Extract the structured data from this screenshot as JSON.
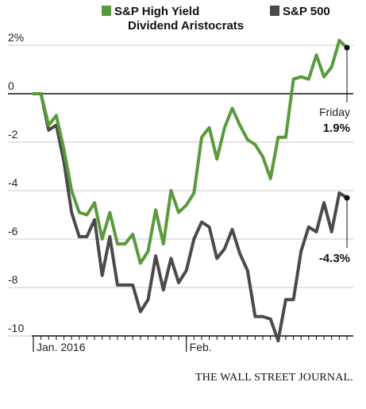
{
  "chart_data": {
    "type": "line",
    "ylim": [
      -10,
      2
    ],
    "yticks": [
      {
        "value": 2,
        "label": "2%"
      },
      {
        "value": 0,
        "label": "0"
      },
      {
        "value": -2,
        "label": "-2"
      },
      {
        "value": -4,
        "label": "-4"
      },
      {
        "value": -6,
        "label": "-6"
      },
      {
        "value": -8,
        "label": "-8"
      },
      {
        "value": -10,
        "label": "-10"
      }
    ],
    "xlabels": [
      {
        "index": 0,
        "label": "Jan. 2016"
      },
      {
        "index": 20,
        "label": "Feb."
      }
    ],
    "series": [
      {
        "name": "S&P High Yield Dividend Aristocrats",
        "color": "#5a9a3c",
        "values": [
          0,
          0,
          -1.3,
          -0.9,
          -2.3,
          -4.0,
          -4.9,
          -5.0,
          -4.5,
          -6.0,
          -4.9,
          -6.2,
          -6.2,
          -5.8,
          -7.0,
          -6.5,
          -4.8,
          -6.2,
          -4.0,
          -4.9,
          -4.6,
          -4.1,
          -1.8,
          -1.4,
          -2.7,
          -1.4,
          -0.6,
          -1.3,
          -1.9,
          -2.1,
          -2.6,
          -3.5,
          -1.8,
          -1.8,
          0.6,
          0.7,
          0.6,
          1.6,
          0.7,
          1.1,
          2.2,
          1.9
        ]
      },
      {
        "name": "S&P 500",
        "color": "#4a4a4a",
        "values": [
          0,
          0,
          -1.5,
          -1.3,
          -2.8,
          -4.9,
          -5.9,
          -5.9,
          -5.2,
          -7.5,
          -5.9,
          -7.9,
          -7.9,
          -7.9,
          -9.0,
          -8.5,
          -6.7,
          -8.1,
          -6.8,
          -7.8,
          -7.3,
          -6.0,
          -5.3,
          -5.5,
          -6.8,
          -6.4,
          -5.6,
          -6.6,
          -7.3,
          -9.2,
          -9.2,
          -9.3,
          -10.2,
          -8.5,
          -8.5,
          -6.5,
          -5.5,
          -5.7,
          -4.5,
          -5.7,
          -4.1,
          -4.3
        ]
      }
    ],
    "end_labels": [
      {
        "series": 0,
        "title": "Friday",
        "value": "1.9%"
      },
      {
        "series": 1,
        "value": "-4.3%"
      }
    ]
  },
  "legend": [
    {
      "label_lines": [
        "S&P High Yield",
        "Dividend Aristocrats"
      ],
      "color": "#5a9a3c"
    },
    {
      "label_lines": [
        "S&P 500"
      ],
      "color": "#4a4a4a"
    }
  ],
  "credit": "THE WALL STREET JOURNAL."
}
